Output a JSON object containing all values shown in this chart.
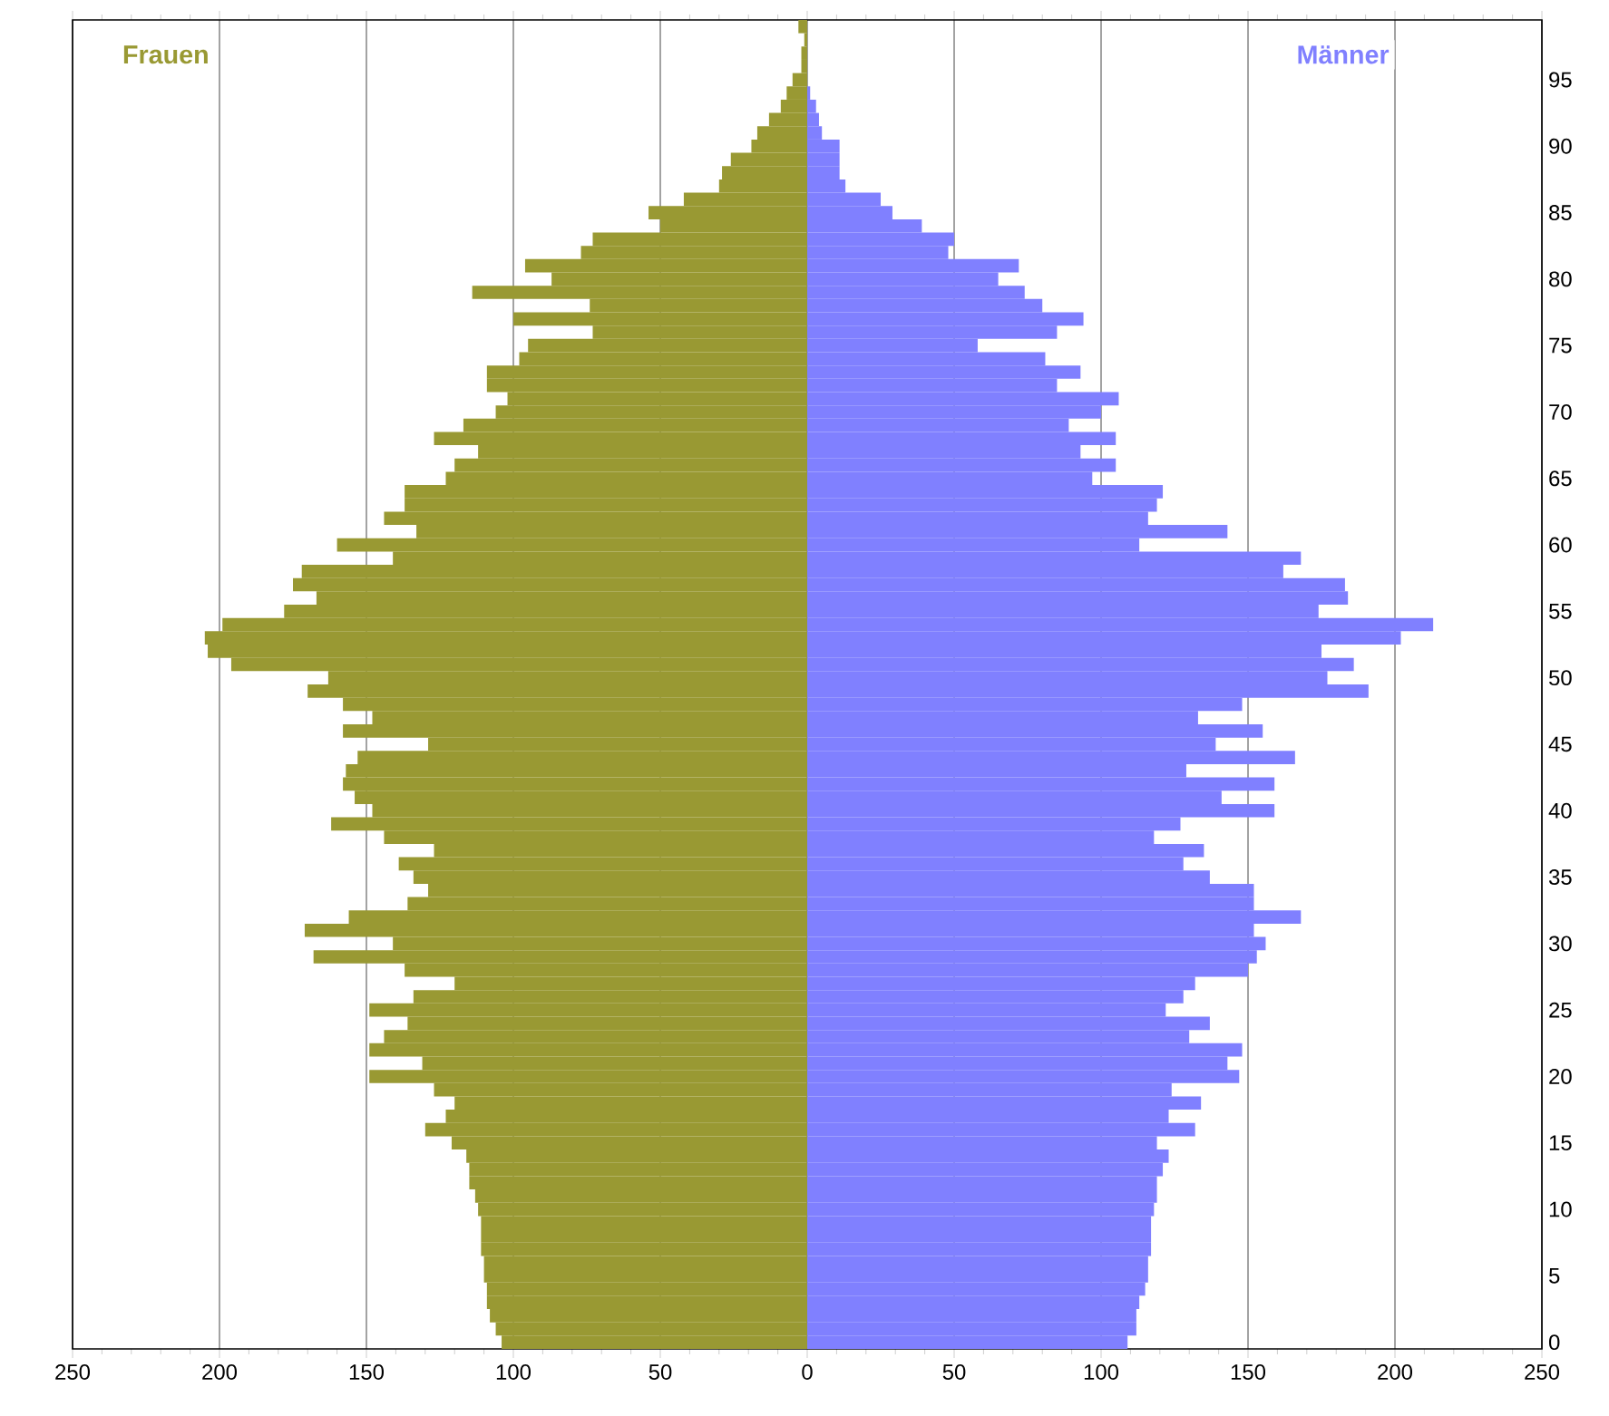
{
  "chart_data": {
    "type": "bar",
    "orientation": "horizontal",
    "stacked": true,
    "categories": [
      null,
      null,
      null,
      null,
      "95",
      null,
      null,
      null,
      null,
      "90",
      null,
      null,
      null,
      null,
      "85",
      null,
      null,
      null,
      null,
      "80",
      null,
      null,
      null,
      null,
      "75",
      null,
      null,
      null,
      null,
      "70",
      null,
      null,
      null,
      null,
      "65",
      null,
      null,
      null,
      null,
      "60",
      null,
      null,
      null,
      null,
      "55",
      null,
      null,
      null,
      null,
      "50",
      null,
      null,
      null,
      null,
      "45",
      null,
      null,
      null,
      null,
      "40",
      null,
      null,
      null,
      null,
      "35",
      null,
      null,
      null,
      null,
      "30",
      null,
      null,
      null,
      null,
      "25",
      null,
      null,
      null,
      null,
      "20",
      null,
      null,
      null,
      null,
      "15",
      null,
      null,
      null,
      null,
      "10",
      null,
      null,
      null,
      null,
      "5",
      null,
      null,
      null,
      null,
      "0"
    ],
    "series": [
      {
        "name": "Frauen",
        "color": "#999933",
        "values": [
          -3,
          -1,
          -2,
          -2,
          -5,
          -7,
          -9,
          -13,
          -17,
          -19,
          -26,
          -29,
          -30,
          -42,
          -54,
          -50,
          -73,
          -77,
          -96,
          -87,
          -114,
          -74,
          -100,
          -73,
          -95,
          -98,
          -109,
          -109,
          -102,
          -106,
          -117,
          -127,
          -112,
          -120,
          -123,
          -137,
          -137,
          -144,
          -133,
          -160,
          -141,
          -172,
          -175,
          -167,
          -178,
          -199,
          -205,
          -204,
          -196,
          -163,
          -170,
          -158,
          -148,
          -158,
          -129,
          -153,
          -157,
          -158,
          -154,
          -148,
          -162,
          -144,
          -127,
          -139,
          -134,
          -129,
          -136,
          -156,
          -171,
          -141,
          -168,
          -137,
          -120,
          -134,
          -149,
          -136,
          -144,
          -149,
          -131,
          -149,
          -127,
          -120,
          -123,
          -130,
          -121,
          -116,
          -115,
          -115,
          -113,
          -112,
          -111,
          -111,
          -111,
          -110,
          -110,
          -109,
          -109,
          -108,
          -106,
          -104
        ]
      },
      {
        "name": "Männer",
        "color": "#8080ff",
        "values": [
          0,
          0,
          0,
          0,
          0,
          1,
          3,
          4,
          5,
          11,
          11,
          11,
          13,
          25,
          29,
          39,
          50,
          48,
          72,
          65,
          74,
          80,
          94,
          85,
          58,
          81,
          93,
          85,
          106,
          100,
          89,
          105,
          93,
          105,
          97,
          121,
          119,
          116,
          143,
          113,
          168,
          162,
          183,
          184,
          174,
          213,
          202,
          175,
          186,
          177,
          191,
          148,
          133,
          155,
          139,
          166,
          129,
          159,
          141,
          159,
          127,
          118,
          135,
          128,
          137,
          152,
          152,
          168,
          152,
          156,
          153,
          150,
          132,
          128,
          122,
          137,
          130,
          148,
          143,
          147,
          124,
          134,
          123,
          132,
          119,
          123,
          121,
          119,
          119,
          118,
          117,
          117,
          117,
          116,
          116,
          115,
          113,
          112,
          112,
          109
        ]
      }
    ],
    "xlim": [
      -250,
      250
    ],
    "xticks": [
      {
        "value": -250,
        "label": "250"
      },
      {
        "value": -200,
        "label": "200"
      },
      {
        "value": -150,
        "label": "150"
      },
      {
        "value": -100,
        "label": "100"
      },
      {
        "value": -50,
        "label": "50"
      },
      {
        "value": 0,
        "label": "0"
      },
      {
        "value": 50,
        "label": "50"
      },
      {
        "value": 100,
        "label": "100"
      },
      {
        "value": 150,
        "label": "150"
      },
      {
        "value": 200,
        "label": "200"
      },
      {
        "value": 250,
        "label": "250"
      }
    ],
    "grid": "x"
  }
}
